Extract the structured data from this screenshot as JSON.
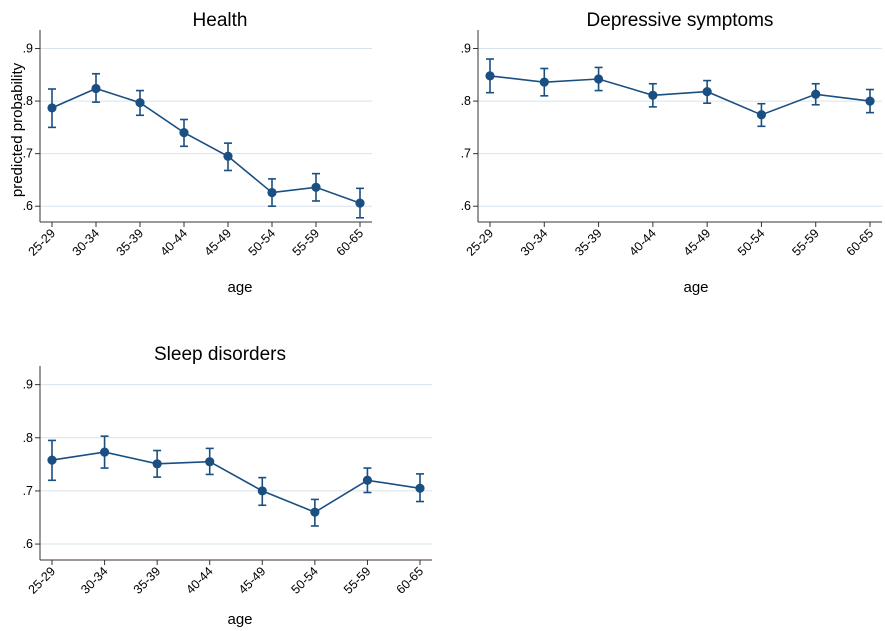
{
  "chart_data": [
    {
      "type": "line",
      "title": "Health",
      "xlabel": "age",
      "ylabel": "predicted probability",
      "categories": [
        "25-29",
        "30-34",
        "35-39",
        "40-44",
        "45-49",
        "50-54",
        "55-59",
        "60-65"
      ],
      "yticks": [
        ".6",
        ".7",
        ".8",
        ".9"
      ],
      "ylim": [
        0.57,
        0.92
      ],
      "grid": true,
      "series": [
        {
          "values": [
            0.787,
            0.824,
            0.797,
            0.74,
            0.695,
            0.626,
            0.636,
            0.606
          ],
          "ci_low": [
            0.75,
            0.798,
            0.773,
            0.714,
            0.668,
            0.6,
            0.61,
            0.578
          ],
          "ci_high": [
            0.823,
            0.852,
            0.82,
            0.765,
            0.72,
            0.652,
            0.662,
            0.634
          ]
        }
      ]
    },
    {
      "type": "line",
      "title": "Depressive symptoms",
      "xlabel": "age",
      "ylabel": "",
      "categories": [
        "25-29",
        "30-34",
        "35-39",
        "40-44",
        "45-49",
        "50-54",
        "55-59",
        "60-65"
      ],
      "yticks": [
        ".6",
        ".7",
        ".8",
        ".9"
      ],
      "ylim": [
        0.57,
        0.92
      ],
      "grid": true,
      "series": [
        {
          "values": [
            0.848,
            0.836,
            0.842,
            0.811,
            0.818,
            0.774,
            0.813,
            0.8
          ],
          "ci_low": [
            0.816,
            0.81,
            0.82,
            0.789,
            0.796,
            0.752,
            0.793,
            0.778
          ],
          "ci_high": [
            0.88,
            0.862,
            0.864,
            0.833,
            0.839,
            0.795,
            0.833,
            0.822
          ]
        }
      ]
    },
    {
      "type": "line",
      "title": "Sleep disorders",
      "xlabel": "age",
      "ylabel": "",
      "categories": [
        "25-29",
        "30-34",
        "35-39",
        "40-44",
        "45-49",
        "50-54",
        "55-59",
        "60-65"
      ],
      "yticks": [
        ".6",
        ".7",
        ".8",
        ".9"
      ],
      "ylim": [
        0.57,
        0.92
      ],
      "grid": true,
      "series": [
        {
          "values": [
            0.758,
            0.773,
            0.751,
            0.755,
            0.7,
            0.66,
            0.72,
            0.705
          ],
          "ci_low": [
            0.72,
            0.743,
            0.726,
            0.731,
            0.673,
            0.634,
            0.697,
            0.68
          ],
          "ci_high": [
            0.795,
            0.803,
            0.776,
            0.78,
            0.725,
            0.684,
            0.743,
            0.732
          ]
        }
      ]
    }
  ],
  "colors": {
    "series": "#1a4f82",
    "grid": "#d7e4ee",
    "axis": "#333333"
  }
}
